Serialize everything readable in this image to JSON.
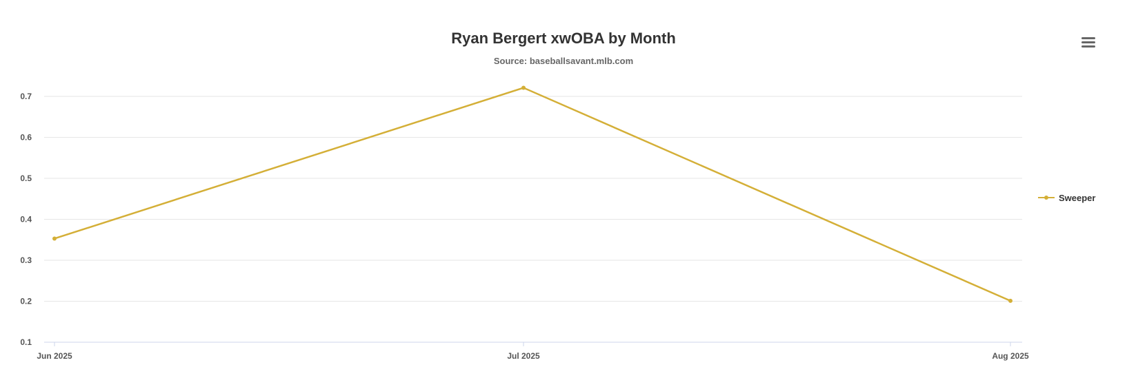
{
  "chart_data": {
    "type": "line",
    "title": "Ryan Bergert xwOBA by Month",
    "subtitle": "Source: baseballsavant.mlb.com",
    "categories": [
      "Jun 2025",
      "Jul 2025",
      "Aug 2025"
    ],
    "series": [
      {
        "name": "Sweeper",
        "values": [
          0.353,
          0.721,
          0.201
        ],
        "color": "#D4AF37"
      }
    ],
    "ylim": [
      0.1,
      0.7
    ],
    "yticks": [
      0.1,
      0.2,
      0.3,
      0.4,
      0.5,
      0.6,
      0.7
    ],
    "ytick_labels": [
      "0.1",
      "0.2",
      "0.3",
      "0.4",
      "0.5",
      "0.6",
      "0.7"
    ],
    "grid": true,
    "legend_position": "right"
  },
  "colors": {
    "grid": "#e6e6e6",
    "axis": "#ccd6eb",
    "series": "#D4AF37"
  },
  "icons": {
    "menu": "hamburger-menu-icon"
  }
}
